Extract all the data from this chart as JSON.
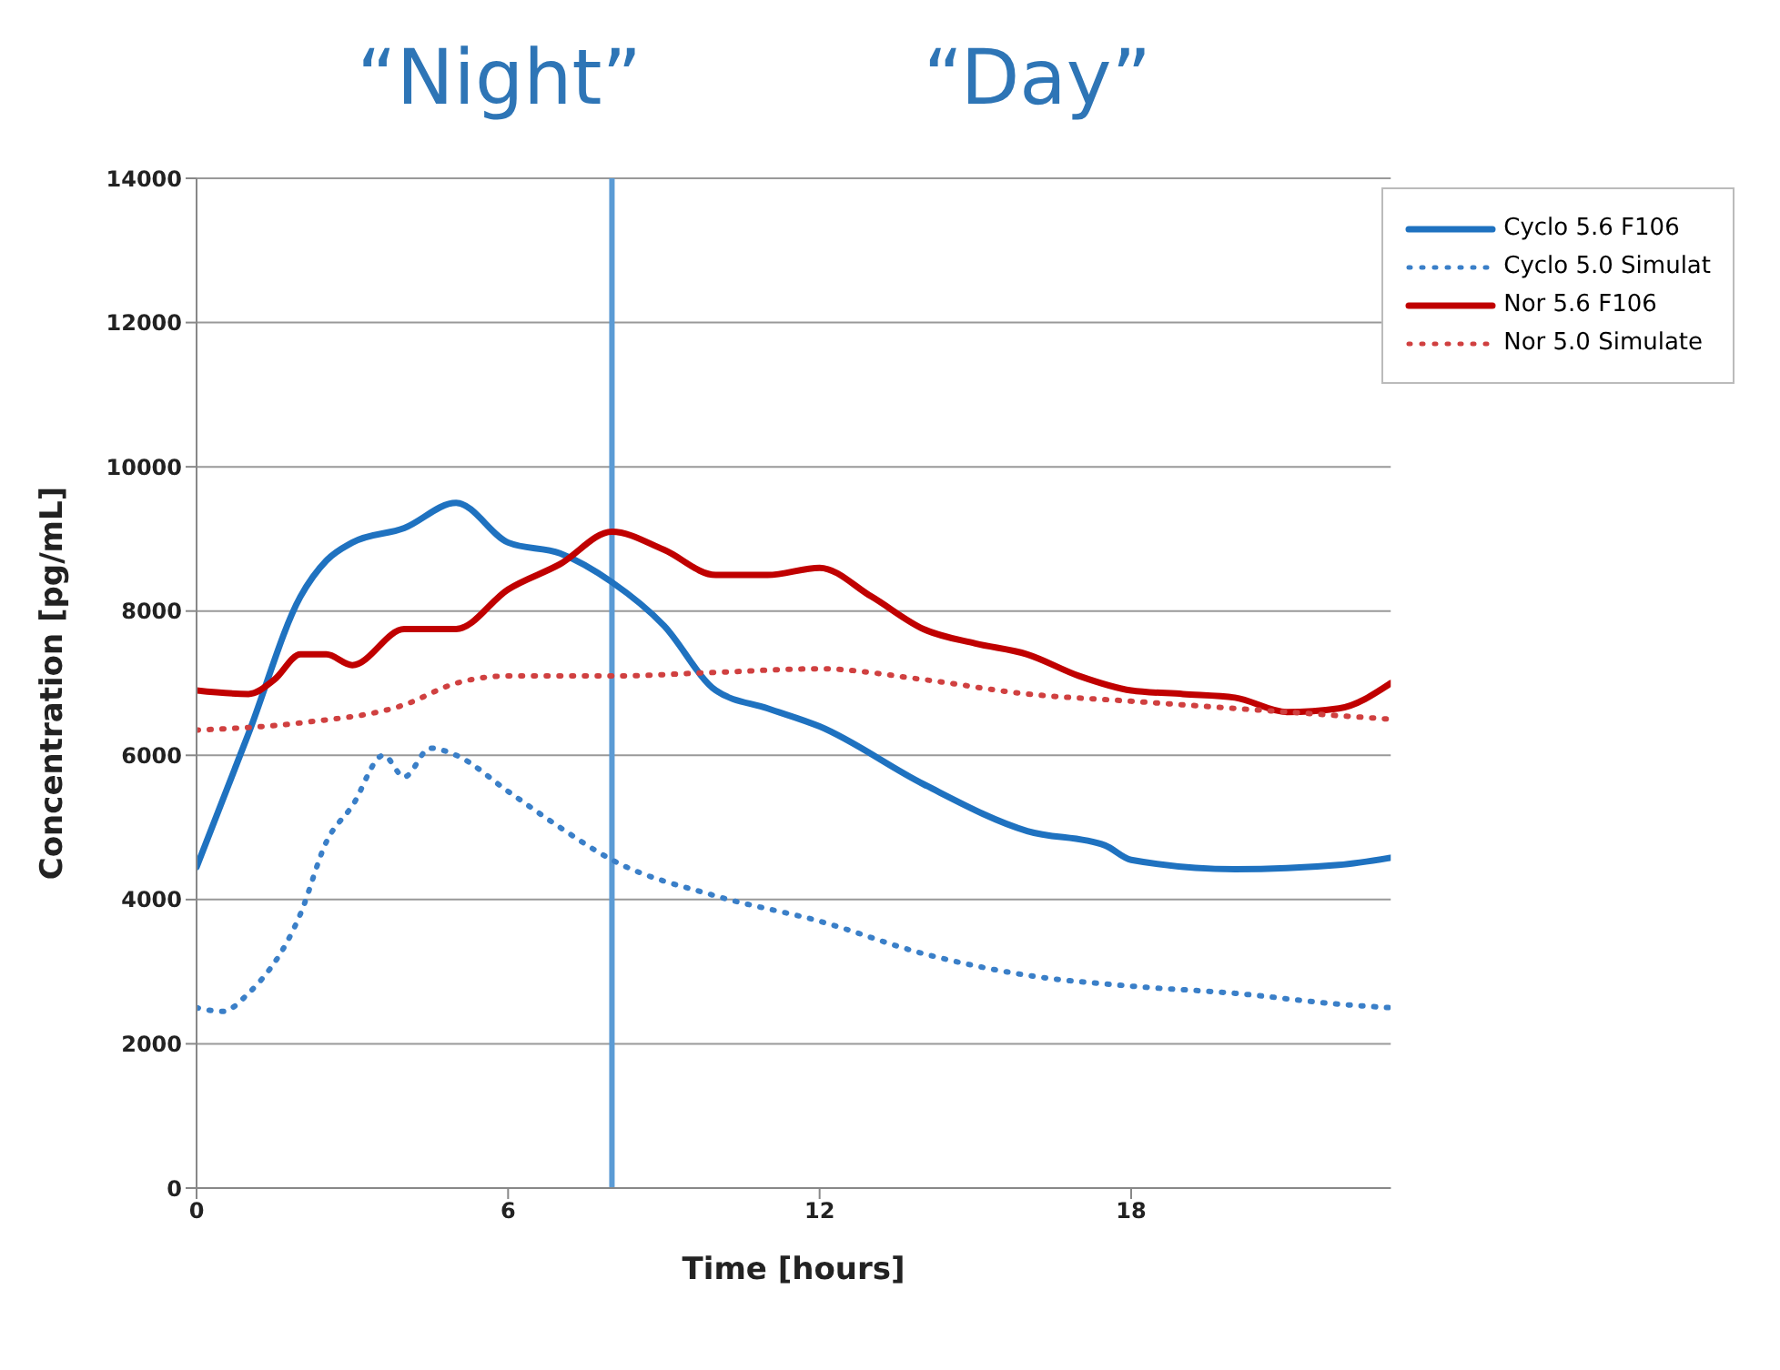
{
  "chart_data": {
    "type": "line",
    "xlabel": "Time [hours]",
    "ylabel": "Concentration [pg/mL]",
    "annotations": [
      "“Night”",
      "“Day”"
    ],
    "xlim": [
      0,
      23
    ],
    "xticks": [
      0,
      6,
      12,
      18
    ],
    "ylim": [
      0,
      14000
    ],
    "yticks": [
      0,
      2000,
      4000,
      6000,
      8000,
      10000,
      12000,
      14000
    ],
    "grid": "y",
    "legend": "top right",
    "marker": "none",
    "ref_lines": [
      {
        "axis": "x",
        "value": 8,
        "color": "#5b9bd5",
        "line_style": "solid"
      }
    ],
    "series": [
      {
        "name": "Cyclo 5.6 F106",
        "color": "#1f72c0",
        "line_style": "solid",
        "x": [
          0,
          1,
          2,
          2.5,
          3,
          4,
          5,
          6,
          7,
          8,
          9,
          10,
          11,
          12,
          14,
          16,
          17.5,
          18,
          20,
          22,
          23
        ],
        "values": [
          4450,
          6300,
          8200,
          8700,
          8950,
          9150,
          9500,
          8950,
          8800,
          8400,
          7800,
          6900,
          6650,
          6400,
          5600,
          4950,
          4750,
          4550,
          4420,
          4480,
          4580
        ]
      },
      {
        "name": "Cyclo 5.0 Simulat",
        "color": "#3a7fc8",
        "line_style": "dotted",
        "x": [
          0,
          0.5,
          1,
          2,
          2.5,
          3,
          3.6,
          4,
          4.5,
          5,
          6,
          7,
          8,
          10,
          12,
          14,
          16,
          18,
          20,
          22,
          23
        ],
        "values": [
          2500,
          2450,
          2700,
          3800,
          4800,
          5300,
          6000,
          5700,
          6100,
          6000,
          5500,
          5000,
          4550,
          4050,
          3700,
          3250,
          2950,
          2800,
          2700,
          2550,
          2500
        ]
      },
      {
        "name": "Nor 5.6 F106",
        "color": "#c00000",
        "line_style": "solid",
        "x": [
          0,
          1,
          1.5,
          2,
          2.5,
          3,
          4,
          5,
          6,
          7,
          8,
          9,
          10,
          11,
          12,
          13,
          14,
          15,
          16,
          17,
          18,
          19,
          20,
          21,
          22,
          23
        ],
        "values": [
          6900,
          6850,
          7050,
          7400,
          7400,
          7250,
          7750,
          7750,
          8300,
          8650,
          9100,
          8850,
          8500,
          8500,
          8600,
          8200,
          7750,
          7550,
          7400,
          7100,
          6900,
          6850,
          6800,
          6600,
          6650,
          7000
        ]
      },
      {
        "name": "Nor 5.0 Simulate",
        "color": "#d04040",
        "line_style": "dotted",
        "x": [
          0,
          2,
          4,
          5,
          6,
          8,
          10,
          12,
          14,
          16,
          18,
          20,
          22,
          23
        ],
        "values": [
          6350,
          6450,
          6700,
          7000,
          7100,
          7100,
          7150,
          7200,
          7050,
          6850,
          6750,
          6650,
          6550,
          6500
        ]
      }
    ]
  }
}
